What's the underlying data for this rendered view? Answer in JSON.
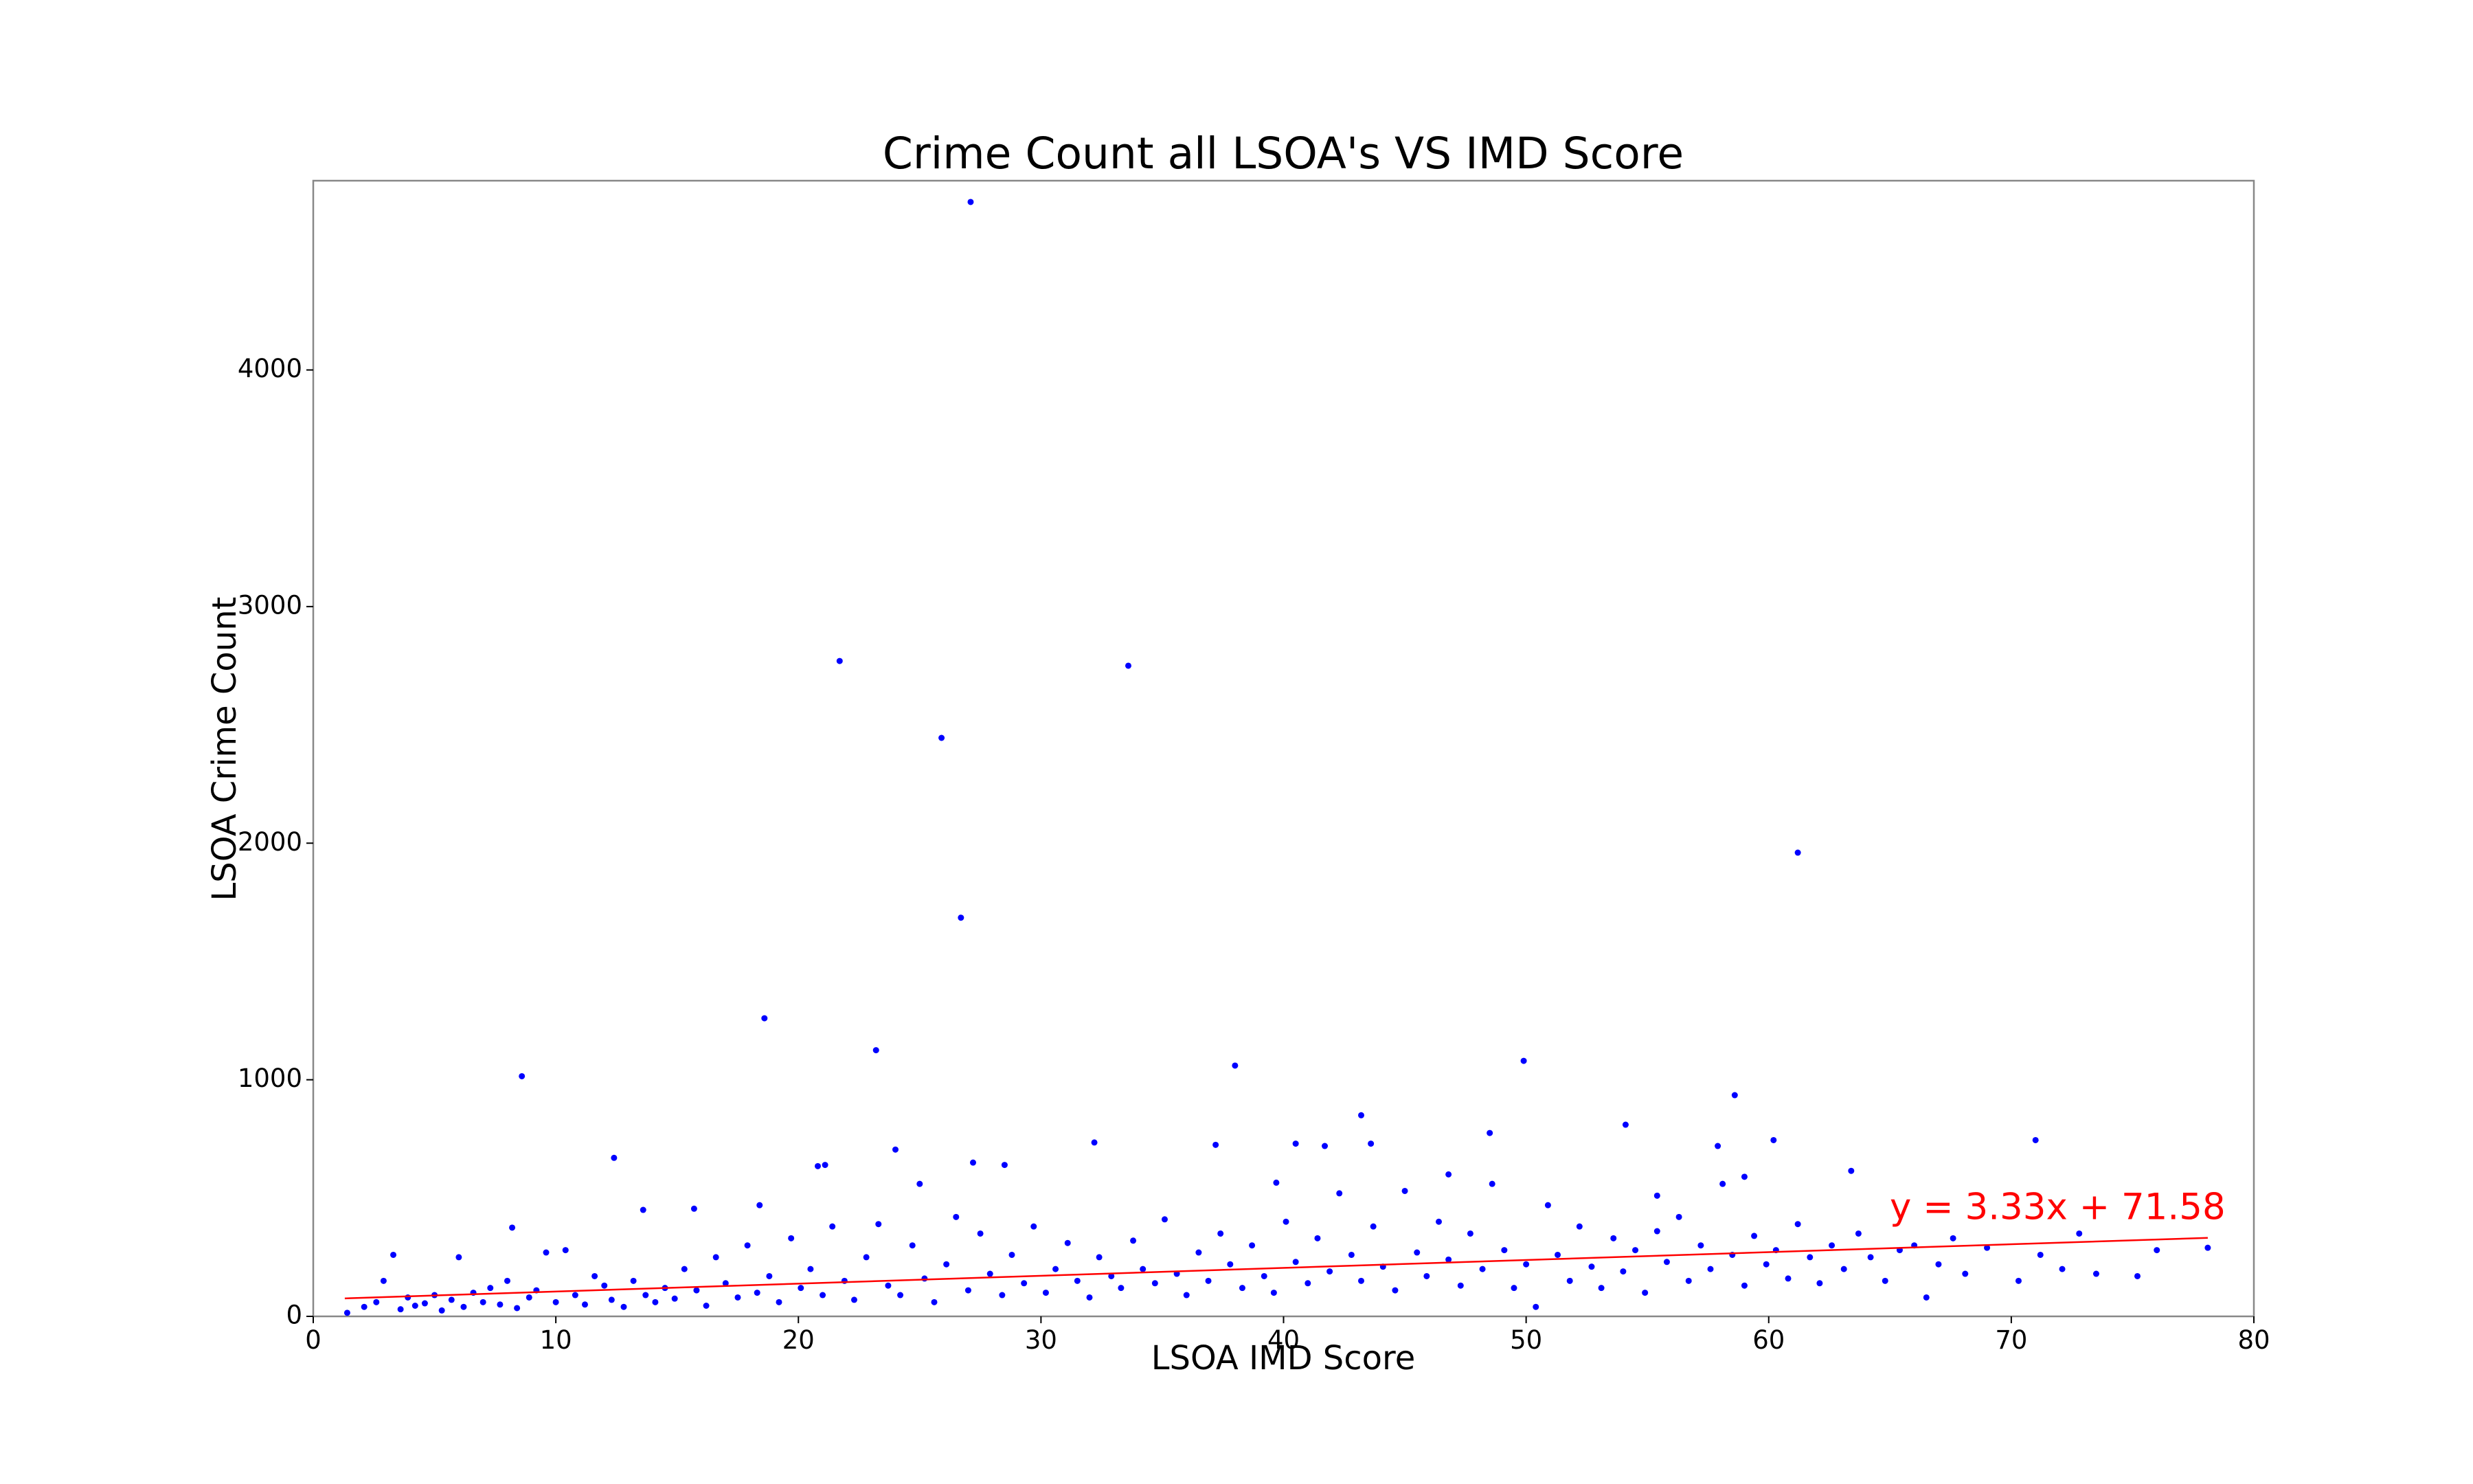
{
  "chart_data": {
    "type": "scatter",
    "title": "Crime Count all LSOA's VS IMD Score",
    "x_label": "LSOA IMD Score",
    "y_label": "LSOA Crime Count",
    "annotation": "y = 3.33x + 71.58",
    "xlim": [
      0,
      80
    ],
    "xticks": [
      0,
      10,
      20,
      30,
      40,
      50,
      60,
      70,
      80
    ],
    "ylim": [
      0,
      4800
    ],
    "yticks": [
      0,
      1000,
      2000,
      3000,
      4000
    ],
    "series": [
      {
        "color": "#0000ff",
        "x": [
          27.1,
          21.7,
          33.6,
          25.9,
          61.2,
          26.7,
          18.6,
          23.2,
          49.9,
          38,
          8.6,
          58.6,
          43.2,
          54.1,
          48.5,
          71,
          60.2,
          32.2,
          40.5,
          37.2,
          41.7,
          57.9,
          43.6,
          24,
          12.4,
          27.2,
          28.5,
          21.1,
          20.8,
          59,
          46.8,
          63.4,
          39.7,
          25,
          55.4,
          18.4,
          15.7,
          13.6,
          8.2,
          1.4,
          2.1,
          2.6,
          2.9,
          3.3,
          3.6,
          3.9,
          4.2,
          4.6,
          5,
          5.3,
          5.7,
          6,
          6.2,
          6.6,
          7,
          7.3,
          7.7,
          8,
          8.4,
          8.9,
          9.2,
          9.6,
          10,
          10.4,
          10.8,
          11.2,
          11.6,
          12,
          12.3,
          12.8,
          13.2,
          13.7,
          14.1,
          14.5,
          14.9,
          15.3,
          15.8,
          16.2,
          16.6,
          17,
          17.5,
          17.9,
          18.3,
          18.8,
          19.2,
          19.7,
          20.1,
          20.5,
          21,
          21.4,
          21.9,
          22.3,
          22.8,
          23.3,
          23.7,
          24.2,
          24.7,
          25.2,
          25.6,
          26.1,
          26.5,
          27,
          27.5,
          27.9,
          28.4,
          28.8,
          29.3,
          29.7,
          30.2,
          30.6,
          31.1,
          31.5,
          32,
          32.4,
          32.9,
          33.3,
          33.8,
          34.2,
          34.7,
          35.1,
          35.6,
          36,
          36.5,
          36.9,
          37.4,
          37.8,
          38.3,
          38.7,
          39.2,
          39.6,
          40.1,
          40.5,
          41,
          41.4,
          41.9,
          42.3,
          42.8,
          43.2,
          43.7,
          44.1,
          44.6,
          45,
          45.5,
          45.9,
          46.4,
          46.8,
          47.3,
          47.7,
          48.2,
          48.6,
          49.1,
          49.5,
          50,
          50.4,
          50.9,
          51.3,
          51.8,
          52.2,
          52.7,
          53.1,
          53.6,
          54,
          54.5,
          54.9,
          55.4,
          55.8,
          56.3,
          56.7,
          57.2,
          57.6,
          58.1,
          58.5,
          59,
          59.4,
          59.9,
          60.3,
          60.8,
          61.2,
          61.7,
          62.1,
          62.6,
          63.1,
          63.7,
          64.2,
          64.8,
          65.4,
          66,
          66.5,
          67,
          67.6,
          68.1,
          69,
          70.3,
          71.2,
          72.1,
          72.8,
          73.5,
          75.2,
          76,
          78.1
        ],
        "values": [
          4710,
          2770,
          2750,
          2445,
          1960,
          1685,
          1260,
          1125,
          1080,
          1060,
          1015,
          935,
          850,
          810,
          775,
          745,
          745,
          735,
          730,
          725,
          720,
          720,
          730,
          705,
          670,
          650,
          640,
          640,
          635,
          590,
          600,
          615,
          565,
          560,
          510,
          470,
          455,
          450,
          375,
          15,
          40,
          60,
          150,
          260,
          30,
          80,
          45,
          55,
          90,
          25,
          70,
          250,
          40,
          100,
          60,
          120,
          50,
          150,
          35,
          80,
          110,
          270,
          60,
          280,
          90,
          50,
          170,
          130,
          70,
          40,
          150,
          90,
          60,
          120,
          75,
          200,
          110,
          45,
          250,
          140,
          80,
          300,
          100,
          170,
          60,
          330,
          120,
          200,
          90,
          380,
          150,
          70,
          250,
          390,
          130,
          90,
          300,
          160,
          60,
          220,
          420,
          110,
          350,
          180,
          90,
          260,
          140,
          380,
          100,
          200,
          310,
          150,
          80,
          250,
          170,
          120,
          320,
          200,
          140,
          410,
          180,
          90,
          270,
          150,
          350,
          220,
          120,
          300,
          170,
          100,
          400,
          230,
          140,
          330,
          190,
          520,
          260,
          150,
          380,
          210,
          110,
          530,
          270,
          170,
          400,
          240,
          130,
          350,
          200,
          560,
          280,
          120,
          220,
          40,
          470,
          260,
          150,
          380,
          210,
          120,
          330,
          190,
          280,
          100,
          360,
          230,
          420,
          150,
          300,
          200,
          560,
          260,
          130,
          340,
          220,
          280,
          160,
          390,
          250,
          140,
          300,
          200,
          350,
          250,
          150,
          280,
          300,
          80,
          220,
          330,
          180,
          290,
          150,
          260,
          200,
          350,
          180,
          170,
          280,
          290
        ]
      }
    ],
    "trend": {
      "color": "#ff0000",
      "x": [
        1.3,
        78.1
      ],
      "values": [
        75.9,
        331.7
      ]
    }
  }
}
